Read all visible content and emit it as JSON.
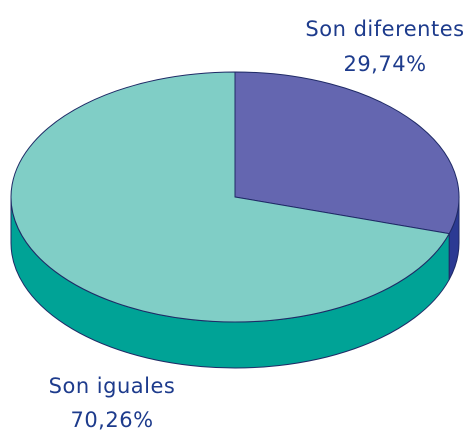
{
  "chart_data": {
    "type": "pie",
    "categories": [
      "Son diferentes",
      "Son iguales"
    ],
    "values": [
      29.74,
      70.26
    ],
    "value_labels": [
      "29,74%",
      "70,26%"
    ],
    "colors": [
      "#6466b0",
      "#80cec6"
    ],
    "side_colors": [
      "#2b3a93",
      "#00a396"
    ],
    "start_angle": 0,
    "direction": "clockwise"
  }
}
